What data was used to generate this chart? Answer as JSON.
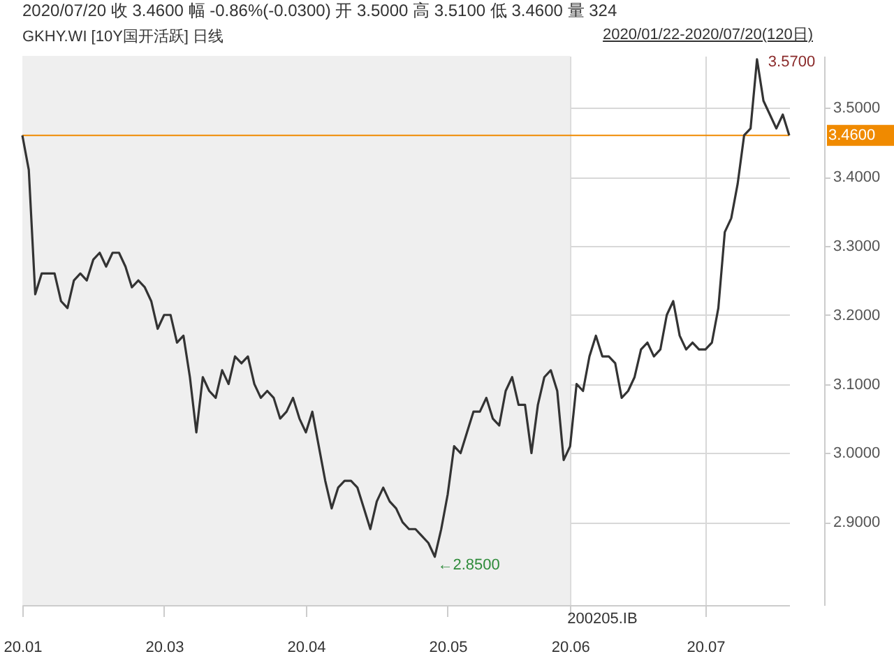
{
  "chart_data": {
    "type": "line",
    "title": "2020/07/20 收 3.4600 幅 -0.86%(-0.0300) 开 3.5000 高 3.5100 低 3.4600 量 324",
    "subtitle": "GKHY.WI [10Y国开活跃] 日线",
    "annotations": [
      "2020/01/22-2020/07/20(120日)",
      "3.5700",
      "←2.8500"
    ],
    "categories": [
      "20.01",
      null,
      null,
      null,
      null,
      null,
      null,
      null,
      null,
      null,
      null,
      null,
      null,
      null,
      null,
      null,
      null,
      null,
      null,
      null,
      null,
      null,
      "20.03",
      null,
      null,
      null,
      null,
      null,
      null,
      null,
      null,
      null,
      null,
      null,
      null,
      null,
      null,
      null,
      null,
      null,
      null,
      null,
      null,
      null,
      "20.04",
      null,
      null,
      null,
      null,
      null,
      null,
      null,
      null,
      null,
      null,
      null,
      null,
      null,
      null,
      null,
      null,
      null,
      null,
      null,
      null,
      null,
      "20.05",
      null,
      null,
      null,
      null,
      null,
      null,
      null,
      null,
      null,
      null,
      null,
      null,
      null,
      null,
      null,
      null,
      null,
      null,
      "20.06",
      null,
      null,
      null,
      null,
      null,
      null,
      null,
      null,
      null,
      null,
      null,
      null,
      null,
      null,
      null,
      null,
      null,
      null,
      null,
      null,
      "20.07",
      null,
      null,
      null,
      null,
      null,
      null,
      null,
      null,
      null,
      null,
      null,
      null,
      null
    ],
    "series": [
      {
        "color": "#333333",
        "values": [
          3.46,
          3.41,
          3.23,
          3.26,
          3.26,
          3.26,
          3.22,
          3.21,
          3.25,
          3.26,
          3.25,
          3.28,
          3.29,
          3.27,
          3.29,
          3.29,
          3.27,
          3.24,
          3.25,
          3.24,
          3.22,
          3.18,
          3.2,
          3.2,
          3.16,
          3.17,
          3.11,
          3.03,
          3.11,
          3.09,
          3.08,
          3.12,
          3.1,
          3.14,
          3.13,
          3.14,
          3.1,
          3.08,
          3.09,
          3.08,
          3.05,
          3.06,
          3.08,
          3.05,
          3.03,
          3.06,
          3.01,
          2.96,
          2.92,
          2.95,
          2.96,
          2.96,
          2.95,
          2.92,
          2.89,
          2.93,
          2.95,
          2.93,
          2.92,
          2.9,
          2.89,
          2.89,
          2.88,
          2.87,
          2.85,
          2.89,
          2.94,
          3.01,
          3.0,
          3.03,
          3.06,
          3.06,
          3.08,
          3.05,
          3.04,
          3.09,
          3.11,
          3.07,
          3.07,
          3.0,
          3.07,
          3.11,
          3.12,
          3.09,
          2.99,
          3.01,
          3.1,
          3.09,
          3.14,
          3.17,
          3.14,
          3.14,
          3.13,
          3.08,
          3.09,
          3.11,
          3.15,
          3.16,
          3.14,
          3.15,
          3.2,
          3.22,
          3.17,
          3.15,
          3.16,
          3.15,
          3.15,
          3.16,
          3.21,
          3.32,
          3.34,
          3.39,
          3.46,
          3.47,
          3.57,
          3.51,
          3.49,
          3.47,
          3.49,
          3.46
        ]
      }
    ],
    "ylim": [
      2.78,
      3.575
    ],
    "yticks": [
      {
        "value": 2.9,
        "label": "2.9000"
      },
      {
        "value": 3.0,
        "label": "3.0000"
      },
      {
        "value": 3.1,
        "label": "3.1000"
      },
      {
        "value": 3.2,
        "label": "3.2000"
      },
      {
        "value": 3.3,
        "label": "3.3000"
      },
      {
        "value": 3.4,
        "label": "3.4000"
      },
      {
        "value": 3.5,
        "label": "3.5000"
      }
    ],
    "ref_lines": [
      {
        "axis": "y",
        "value": 3.46,
        "label": "3.4600",
        "color": "#f08a00"
      }
    ],
    "bands": [
      {
        "axis": "x",
        "from": "20.01",
        "to": "20.06",
        "label": "200205.IB",
        "color": "#efefef"
      }
    ],
    "grid": true,
    "marker": "none",
    "line_style": "solid"
  }
}
